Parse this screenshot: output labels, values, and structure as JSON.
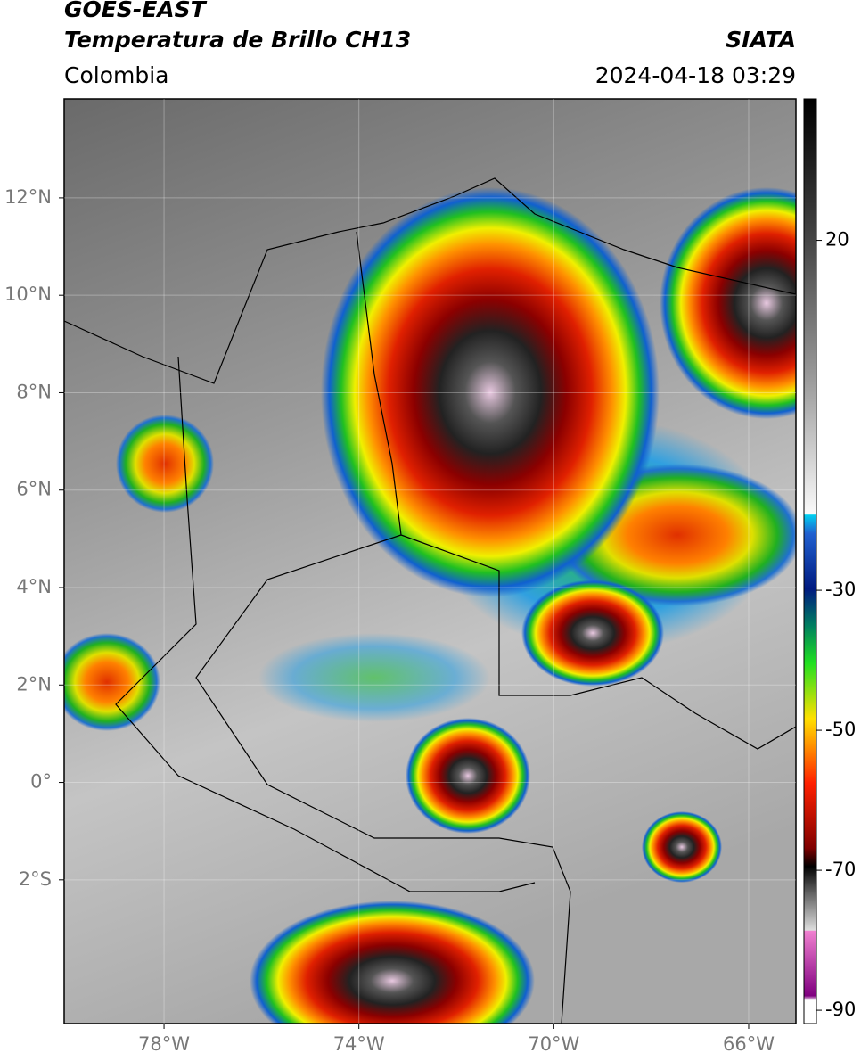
{
  "header": {
    "line1": "GOES-EAST",
    "line2": "Temperatura de Brillo CH13",
    "source": "SIATA",
    "region": "Colombia",
    "timestamp": "2024-04-18 03:29"
  },
  "map": {
    "xlim": [
      -80.05,
      -65.03
    ],
    "ylim": [
      -4.95,
      14.03
    ],
    "xticks": [
      {
        "value": -78,
        "label": "78°W"
      },
      {
        "value": -74,
        "label": "74°W"
      },
      {
        "value": -70,
        "label": "70°W"
      },
      {
        "value": -66,
        "label": "66°W"
      }
    ],
    "yticks": [
      {
        "value": 12,
        "label": "12°N"
      },
      {
        "value": 10,
        "label": "10°N"
      },
      {
        "value": 8,
        "label": "8°N"
      },
      {
        "value": 6,
        "label": "6°N"
      },
      {
        "value": 4,
        "label": "4°N"
      },
      {
        "value": 2,
        "label": "2°N"
      },
      {
        "value": 0,
        "label": "0°"
      },
      {
        "value": -2,
        "label": "2°S"
      }
    ],
    "grid": true
  },
  "colorbar": {
    "clim": [
      -91.9,
      40.2
    ],
    "ticks": [
      20,
      -30,
      -50,
      -70,
      -90
    ]
  }
}
